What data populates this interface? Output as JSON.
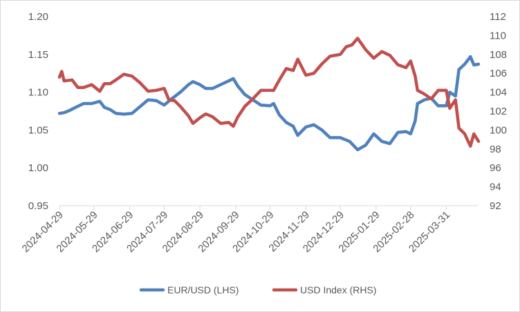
{
  "chart_data": {
    "type": "line",
    "title": "",
    "x_tick_labels": [
      "2024-04-29",
      "2024-05-29",
      "2024-06-29",
      "2024-07-29",
      "2024-08-29",
      "2024-09-29",
      "2024-10-29",
      "2024-11-29",
      "2024-12-29",
      "2025-01-29",
      "2025-02-28",
      "2025-03-31"
    ],
    "x_range": [
      "2024-04-29",
      "2025-04-28"
    ],
    "y_left": {
      "ticks": [
        "0.95",
        "1.00",
        "1.05",
        "1.10",
        "1.15",
        "1.20"
      ],
      "range": [
        0.95,
        1.2
      ]
    },
    "y_right": {
      "ticks": [
        "92",
        "94",
        "96",
        "98",
        "100",
        "102",
        "104",
        "106",
        "108",
        "110",
        "112"
      ],
      "range": [
        92,
        112
      ]
    },
    "grid": false,
    "legend_position": "bottom",
    "series": [
      {
        "name": "EUR/USD (LHS)",
        "axis": "left",
        "color": "#4f81bd",
        "points": [
          [
            "2024-04-29",
            1.072
          ],
          [
            "2024-05-03",
            1.073
          ],
          [
            "2024-05-08",
            1.076
          ],
          [
            "2024-05-13",
            1.08
          ],
          [
            "2024-05-20",
            1.085
          ],
          [
            "2024-05-27",
            1.085
          ],
          [
            "2024-06-03",
            1.088
          ],
          [
            "2024-06-07",
            1.08
          ],
          [
            "2024-06-12",
            1.077
          ],
          [
            "2024-06-17",
            1.072
          ],
          [
            "2024-06-24",
            1.071
          ],
          [
            "2024-07-01",
            1.072
          ],
          [
            "2024-07-08",
            1.081
          ],
          [
            "2024-07-15",
            1.09
          ],
          [
            "2024-07-22",
            1.089
          ],
          [
            "2024-07-29",
            1.083
          ],
          [
            "2024-08-05",
            1.092
          ],
          [
            "2024-08-12",
            1.1
          ],
          [
            "2024-08-19",
            1.11
          ],
          [
            "2024-08-23",
            1.114
          ],
          [
            "2024-08-29",
            1.11
          ],
          [
            "2024-09-03",
            1.105
          ],
          [
            "2024-09-09",
            1.105
          ],
          [
            "2024-09-16",
            1.11
          ],
          [
            "2024-09-23",
            1.115
          ],
          [
            "2024-09-27",
            1.118
          ],
          [
            "2024-10-01",
            1.108
          ],
          [
            "2024-10-07",
            1.097
          ],
          [
            "2024-10-14",
            1.09
          ],
          [
            "2024-10-21",
            1.083
          ],
          [
            "2024-10-29",
            1.082
          ],
          [
            "2024-11-01",
            1.085
          ],
          [
            "2024-11-06",
            1.07
          ],
          [
            "2024-11-12",
            1.06
          ],
          [
            "2024-11-18",
            1.055
          ],
          [
            "2024-11-22",
            1.043
          ],
          [
            "2024-11-29",
            1.054
          ],
          [
            "2024-12-06",
            1.057
          ],
          [
            "2024-12-13",
            1.05
          ],
          [
            "2024-12-20",
            1.04
          ],
          [
            "2024-12-29",
            1.04
          ],
          [
            "2025-01-06",
            1.035
          ],
          [
            "2025-01-13",
            1.024
          ],
          [
            "2025-01-20",
            1.03
          ],
          [
            "2025-01-27",
            1.045
          ],
          [
            "2025-02-03",
            1.035
          ],
          [
            "2025-02-10",
            1.032
          ],
          [
            "2025-02-17",
            1.047
          ],
          [
            "2025-02-24",
            1.048
          ],
          [
            "2025-02-28",
            1.045
          ],
          [
            "2025-03-04",
            1.062
          ],
          [
            "2025-03-06",
            1.085
          ],
          [
            "2025-03-12",
            1.09
          ],
          [
            "2025-03-18",
            1.092
          ],
          [
            "2025-03-24",
            1.082
          ],
          [
            "2025-03-31",
            1.082
          ],
          [
            "2025-04-03",
            1.1
          ],
          [
            "2025-04-08",
            1.095
          ],
          [
            "2025-04-11",
            1.13
          ],
          [
            "2025-04-16",
            1.137
          ],
          [
            "2025-04-21",
            1.147
          ],
          [
            "2025-04-24",
            1.136
          ],
          [
            "2025-04-28",
            1.137
          ]
        ]
      },
      {
        "name": "USD Index (RHS)",
        "axis": "right",
        "color": "#c0504d",
        "points": [
          [
            "2024-04-29",
            105.6
          ],
          [
            "2024-05-01",
            106.2
          ],
          [
            "2024-05-03",
            105.2
          ],
          [
            "2024-05-10",
            105.3
          ],
          [
            "2024-05-15",
            104.5
          ],
          [
            "2024-05-20",
            104.5
          ],
          [
            "2024-05-27",
            104.8
          ],
          [
            "2024-06-03",
            104.1
          ],
          [
            "2024-06-07",
            104.9
          ],
          [
            "2024-06-12",
            104.9
          ],
          [
            "2024-06-17",
            105.3
          ],
          [
            "2024-06-24",
            105.9
          ],
          [
            "2024-07-01",
            105.7
          ],
          [
            "2024-07-08",
            105.0
          ],
          [
            "2024-07-15",
            104.1
          ],
          [
            "2024-07-22",
            104.2
          ],
          [
            "2024-07-29",
            104.4
          ],
          [
            "2024-08-02",
            103.2
          ],
          [
            "2024-08-07",
            103.1
          ],
          [
            "2024-08-12",
            102.5
          ],
          [
            "2024-08-19",
            101.5
          ],
          [
            "2024-08-23",
            100.7
          ],
          [
            "2024-08-29",
            101.3
          ],
          [
            "2024-09-03",
            101.7
          ],
          [
            "2024-09-09",
            101.4
          ],
          [
            "2024-09-16",
            100.7
          ],
          [
            "2024-09-23",
            100.8
          ],
          [
            "2024-09-27",
            100.4
          ],
          [
            "2024-10-01",
            101.4
          ],
          [
            "2024-10-07",
            102.5
          ],
          [
            "2024-10-14",
            103.3
          ],
          [
            "2024-10-21",
            104.2
          ],
          [
            "2024-10-29",
            104.2
          ],
          [
            "2024-11-01",
            104.2
          ],
          [
            "2024-11-06",
            105.3
          ],
          [
            "2024-11-12",
            106.5
          ],
          [
            "2024-11-18",
            106.3
          ],
          [
            "2024-11-22",
            107.5
          ],
          [
            "2024-11-29",
            105.8
          ],
          [
            "2024-12-06",
            106.0
          ],
          [
            "2024-12-13",
            107.0
          ],
          [
            "2024-12-20",
            107.8
          ],
          [
            "2024-12-29",
            108.0
          ],
          [
            "2025-01-03",
            108.8
          ],
          [
            "2025-01-08",
            109.0
          ],
          [
            "2025-01-13",
            109.7
          ],
          [
            "2025-01-20",
            108.5
          ],
          [
            "2025-01-27",
            107.6
          ],
          [
            "2025-02-03",
            108.3
          ],
          [
            "2025-02-10",
            107.9
          ],
          [
            "2025-02-17",
            106.9
          ],
          [
            "2025-02-24",
            106.6
          ],
          [
            "2025-02-28",
            107.3
          ],
          [
            "2025-03-04",
            105.7
          ],
          [
            "2025-03-06",
            104.2
          ],
          [
            "2025-03-12",
            103.8
          ],
          [
            "2025-03-18",
            103.3
          ],
          [
            "2025-03-24",
            104.2
          ],
          [
            "2025-03-31",
            104.2
          ],
          [
            "2025-04-03",
            102.3
          ],
          [
            "2025-04-08",
            103.2
          ],
          [
            "2025-04-11",
            100.2
          ],
          [
            "2025-04-16",
            99.6
          ],
          [
            "2025-04-21",
            98.3
          ],
          [
            "2025-04-24",
            99.6
          ],
          [
            "2025-04-28",
            98.8
          ]
        ]
      }
    ]
  }
}
